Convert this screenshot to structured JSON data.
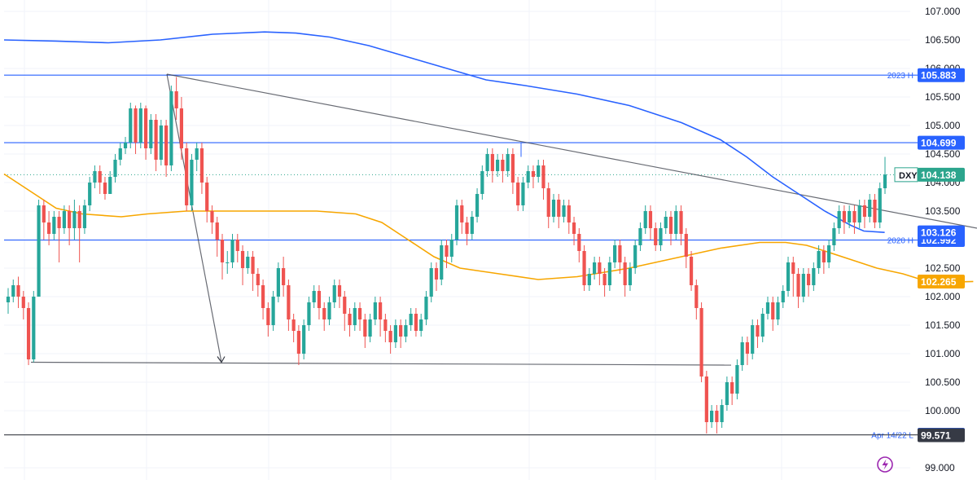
{
  "chart_data": {
    "type": "candlestick",
    "instrument": "DXY",
    "ylim": [
      98.85,
      107.1
    ],
    "y_ticks": [
      "99.000",
      "100.000",
      "100.500",
      "101.000",
      "101.500",
      "102.000",
      "102.500",
      "103.000",
      "103.500",
      "104.000",
      "104.500",
      "105.000",
      "105.500",
      "106.000",
      "106.500",
      "107.000"
    ],
    "last_price": 104.138,
    "levels": [
      {
        "label": "2023 H",
        "value": 105.883,
        "tag": "105.883",
        "color": "#2962ff"
      },
      {
        "label": "",
        "value": 104.699,
        "tag": "104.699",
        "color": "#2962ff"
      },
      {
        "label": "2020 H",
        "value": 102.992,
        "tag": "102.992",
        "color": "#2962ff"
      },
      {
        "label": "Apr 14/22 L",
        "value": 99.578,
        "tag": "99.578",
        "color": "#2962ff"
      }
    ],
    "indicator_tags": [
      {
        "value": 103.126,
        "tag": "103.126",
        "color": "#2962ff"
      },
      {
        "value": 102.265,
        "tag": "102.265",
        "color": "#f7a600"
      },
      {
        "value": 99.571,
        "tag": "99.571",
        "color": "#363a45"
      }
    ],
    "price_tag": {
      "symbol": "DXY",
      "value": "104.138",
      "color": "#2ca58d"
    },
    "colors": {
      "up": "#26a69a",
      "down": "#ef5350",
      "ma_slow": "#2962ff",
      "ma_fast": "#f7a600",
      "trend": "#808080",
      "grid": "#f0f3fa"
    },
    "candles": [
      [
        101.9,
        102.0,
        101.7,
        102.15
      ],
      [
        102.0,
        102.2,
        101.9,
        102.3
      ],
      [
        102.2,
        102.0,
        101.8,
        102.35
      ],
      [
        102.0,
        101.8,
        101.6,
        102.1
      ],
      [
        101.8,
        100.9,
        100.8,
        101.9
      ],
      [
        100.9,
        102.0,
        100.85,
        102.1
      ],
      [
        102.0,
        103.6,
        102.0,
        103.7
      ],
      [
        103.6,
        103.3,
        103.0,
        103.7
      ],
      [
        103.3,
        103.1,
        102.9,
        103.5
      ],
      [
        103.1,
        103.4,
        103.0,
        103.5
      ],
      [
        103.4,
        103.2,
        102.6,
        103.5
      ],
      [
        103.2,
        103.5,
        103.1,
        103.6
      ],
      [
        103.5,
        103.2,
        102.9,
        103.6
      ],
      [
        103.2,
        103.5,
        103.0,
        103.7
      ],
      [
        103.5,
        103.2,
        102.6,
        103.6
      ],
      [
        103.2,
        103.6,
        103.1,
        103.7
      ],
      [
        103.6,
        104.0,
        103.5,
        104.1
      ],
      [
        104.0,
        104.2,
        103.9,
        104.3
      ],
      [
        104.2,
        104.0,
        103.8,
        104.3
      ],
      [
        104.0,
        103.8,
        103.7,
        104.1
      ],
      [
        103.8,
        104.1,
        103.8,
        104.2
      ],
      [
        104.1,
        104.4,
        104.0,
        104.5
      ],
      [
        104.4,
        104.6,
        104.3,
        104.7
      ],
      [
        104.6,
        104.7,
        104.5,
        104.8
      ],
      [
        104.7,
        105.3,
        104.6,
        105.4
      ],
      [
        105.3,
        104.7,
        104.5,
        105.35
      ],
      [
        104.7,
        105.3,
        104.6,
        105.4
      ],
      [
        105.3,
        104.6,
        104.4,
        105.35
      ],
      [
        104.6,
        105.1,
        104.5,
        105.2
      ],
      [
        105.1,
        104.4,
        104.2,
        105.2
      ],
      [
        104.4,
        105.0,
        104.3,
        105.1
      ],
      [
        105.0,
        104.3,
        104.1,
        105.1
      ],
      [
        104.3,
        105.6,
        104.2,
        105.7
      ],
      [
        105.6,
        105.3,
        105.1,
        105.85
      ],
      [
        105.3,
        104.6,
        104.4,
        105.5
      ],
      [
        104.6,
        103.6,
        103.5,
        104.7
      ],
      [
        103.6,
        104.4,
        103.5,
        104.5
      ],
      [
        104.4,
        104.6,
        104.2,
        104.7
      ],
      [
        104.6,
        104.0,
        103.8,
        104.7
      ],
      [
        104.0,
        103.5,
        103.3,
        104.1
      ],
      [
        103.5,
        103.3,
        103.1,
        103.6
      ],
      [
        103.3,
        103.0,
        102.7,
        103.4
      ],
      [
        103.0,
        102.6,
        102.3,
        103.1
      ],
      [
        102.6,
        102.6,
        102.4,
        102.8
      ],
      [
        102.6,
        103.0,
        102.5,
        103.1
      ],
      [
        103.0,
        102.8,
        102.6,
        103.1
      ],
      [
        102.8,
        102.5,
        102.2,
        102.9
      ],
      [
        102.5,
        102.7,
        102.4,
        102.8
      ],
      [
        102.7,
        102.4,
        102.1,
        102.8
      ],
      [
        102.4,
        102.2,
        102.0,
        102.5
      ],
      [
        102.2,
        101.8,
        101.6,
        102.3
      ],
      [
        101.8,
        101.5,
        101.3,
        101.9
      ],
      [
        101.5,
        102.0,
        101.4,
        102.1
      ],
      [
        102.0,
        102.5,
        101.9,
        102.6
      ],
      [
        102.5,
        102.2,
        102.0,
        102.7
      ],
      [
        102.2,
        101.6,
        101.4,
        102.3
      ],
      [
        101.6,
        101.4,
        101.2,
        101.7
      ],
      [
        101.4,
        101.0,
        100.8,
        101.5
      ],
      [
        101.0,
        101.5,
        100.9,
        101.6
      ],
      [
        101.5,
        101.9,
        101.4,
        102.0
      ],
      [
        101.9,
        102.1,
        101.8,
        102.2
      ],
      [
        102.1,
        101.8,
        101.6,
        102.2
      ],
      [
        101.8,
        101.6,
        101.4,
        101.9
      ],
      [
        101.6,
        101.9,
        101.5,
        102.0
      ],
      [
        101.9,
        102.2,
        101.8,
        102.3
      ],
      [
        102.2,
        102.0,
        101.8,
        102.3
      ],
      [
        102.0,
        101.7,
        101.4,
        102.1
      ],
      [
        101.7,
        101.5,
        101.3,
        101.8
      ],
      [
        101.5,
        101.8,
        101.4,
        101.9
      ],
      [
        101.8,
        101.6,
        101.4,
        101.9
      ],
      [
        101.6,
        101.3,
        101.1,
        101.7
      ],
      [
        101.3,
        101.6,
        101.2,
        101.7
      ],
      [
        101.6,
        101.9,
        101.5,
        102.0
      ],
      [
        101.9,
        101.6,
        101.3,
        102.0
      ],
      [
        101.6,
        101.4,
        101.2,
        101.7
      ],
      [
        101.4,
        101.2,
        101.0,
        101.5
      ],
      [
        101.2,
        101.5,
        101.1,
        101.6
      ],
      [
        101.5,
        101.3,
        101.1,
        101.6
      ],
      [
        101.3,
        101.5,
        101.2,
        101.6
      ],
      [
        101.5,
        101.7,
        101.4,
        101.8
      ],
      [
        101.7,
        101.4,
        101.3,
        101.8
      ],
      [
        101.4,
        101.6,
        101.3,
        101.7
      ],
      [
        101.6,
        102.0,
        101.5,
        102.1
      ],
      [
        102.0,
        102.5,
        101.9,
        102.6
      ],
      [
        102.5,
        102.3,
        102.1,
        102.6
      ],
      [
        102.3,
        102.9,
        102.2,
        103.0
      ],
      [
        102.9,
        102.7,
        102.5,
        103.0
      ],
      [
        102.7,
        103.0,
        102.6,
        103.1
      ],
      [
        103.0,
        103.6,
        102.9,
        103.7
      ],
      [
        103.6,
        103.3,
        103.1,
        103.7
      ],
      [
        103.3,
        103.1,
        102.9,
        103.4
      ],
      [
        103.1,
        103.4,
        103.0,
        103.5
      ],
      [
        103.4,
        103.8,
        103.3,
        103.9
      ],
      [
        103.8,
        104.2,
        103.7,
        104.3
      ],
      [
        104.2,
        104.5,
        104.1,
        104.6
      ],
      [
        104.5,
        104.2,
        104.0,
        104.6
      ],
      [
        104.2,
        104.4,
        104.1,
        104.5
      ],
      [
        104.4,
        104.2,
        104.0,
        104.5
      ],
      [
        104.2,
        104.5,
        104.1,
        104.6
      ],
      [
        104.5,
        104.0,
        103.8,
        104.6
      ],
      [
        104.0,
        103.6,
        103.5,
        104.1
      ],
      [
        103.6,
        104.0,
        103.5,
        104.1
      ],
      [
        104.0,
        104.2,
        103.9,
        104.3
      ],
      [
        104.2,
        104.1,
        103.9,
        104.3
      ],
      [
        104.1,
        104.3,
        104.0,
        104.4
      ],
      [
        104.3,
        103.9,
        103.7,
        104.4
      ],
      [
        103.9,
        103.4,
        103.2,
        104.0
      ],
      [
        103.4,
        103.7,
        103.3,
        103.8
      ],
      [
        103.7,
        103.4,
        103.2,
        103.8
      ],
      [
        103.4,
        103.6,
        103.3,
        103.7
      ],
      [
        103.6,
        103.3,
        103.1,
        103.7
      ],
      [
        103.3,
        103.1,
        102.9,
        103.4
      ],
      [
        103.1,
        102.8,
        102.6,
        103.2
      ],
      [
        102.8,
        102.2,
        102.1,
        102.9
      ],
      [
        102.2,
        102.4,
        102.1,
        102.5
      ],
      [
        102.4,
        102.6,
        102.3,
        102.7
      ],
      [
        102.6,
        102.4,
        102.2,
        102.7
      ],
      [
        102.4,
        102.2,
        102.0,
        102.5
      ],
      [
        102.2,
        102.6,
        102.1,
        102.7
      ],
      [
        102.6,
        102.9,
        102.5,
        103.0
      ],
      [
        102.9,
        102.6,
        102.4,
        103.0
      ],
      [
        102.6,
        102.2,
        102.0,
        102.7
      ],
      [
        102.2,
        102.5,
        102.1,
        102.6
      ],
      [
        102.5,
        102.9,
        102.4,
        103.0
      ],
      [
        102.9,
        103.2,
        102.8,
        103.3
      ],
      [
        103.2,
        103.5,
        103.1,
        103.6
      ],
      [
        103.5,
        103.2,
        103.0,
        103.6
      ],
      [
        103.2,
        102.9,
        102.8,
        103.3
      ],
      [
        102.9,
        103.2,
        102.8,
        103.3
      ],
      [
        103.2,
        103.4,
        103.1,
        103.5
      ],
      [
        103.4,
        103.1,
        102.9,
        103.5
      ],
      [
        103.1,
        103.5,
        103.0,
        103.6
      ],
      [
        103.5,
        103.1,
        102.9,
        103.6
      ],
      [
        103.1,
        102.7,
        102.5,
        103.2
      ],
      [
        102.7,
        102.2,
        102.1,
        102.8
      ],
      [
        102.2,
        101.8,
        101.6,
        102.3
      ],
      [
        101.8,
        100.6,
        100.5,
        101.9
      ],
      [
        100.6,
        99.8,
        99.6,
        100.7
      ],
      [
        99.8,
        100.0,
        99.7,
        100.1
      ],
      [
        100.0,
        99.8,
        99.6,
        100.1
      ],
      [
        99.8,
        100.1,
        99.7,
        100.2
      ],
      [
        100.1,
        100.5,
        100.0,
        100.6
      ],
      [
        100.5,
        100.3,
        100.1,
        100.6
      ],
      [
        100.3,
        100.8,
        100.2,
        100.9
      ],
      [
        100.8,
        101.2,
        100.7,
        101.3
      ],
      [
        101.2,
        101.0,
        100.8,
        101.3
      ],
      [
        101.0,
        101.5,
        100.9,
        101.6
      ],
      [
        101.5,
        101.3,
        101.1,
        101.6
      ],
      [
        101.3,
        101.7,
        101.2,
        101.8
      ],
      [
        101.7,
        101.9,
        101.6,
        102.0
      ],
      [
        101.9,
        101.6,
        101.4,
        102.0
      ],
      [
        101.6,
        101.9,
        101.5,
        102.0
      ],
      [
        101.9,
        102.1,
        101.8,
        102.2
      ],
      [
        102.1,
        102.6,
        102.0,
        102.7
      ],
      [
        102.6,
        102.4,
        102.0,
        102.7
      ],
      [
        102.4,
        102.0,
        101.8,
        102.5
      ],
      [
        102.0,
        102.4,
        101.9,
        102.5
      ],
      [
        102.4,
        102.2,
        102.0,
        102.5
      ],
      [
        102.2,
        102.5,
        102.1,
        102.6
      ],
      [
        102.5,
        102.8,
        102.4,
        102.9
      ],
      [
        102.8,
        102.6,
        102.4,
        102.9
      ],
      [
        102.6,
        102.9,
        102.5,
        103.0
      ],
      [
        102.9,
        103.2,
        102.8,
        103.3
      ],
      [
        103.2,
        103.5,
        103.1,
        103.6
      ],
      [
        103.5,
        103.3,
        103.1,
        103.6
      ],
      [
        103.3,
        103.5,
        103.2,
        103.6
      ],
      [
        103.5,
        103.3,
        103.1,
        103.6
      ],
      [
        103.3,
        103.6,
        103.2,
        103.7
      ],
      [
        103.6,
        103.4,
        103.2,
        103.7
      ],
      [
        103.4,
        103.7,
        103.3,
        103.8
      ],
      [
        103.7,
        103.3,
        103.2,
        103.8
      ],
      [
        103.3,
        103.9,
        103.2,
        104.0
      ],
      [
        103.9,
        104.14,
        103.8,
        104.45
      ]
    ],
    "ma_slow": [
      [
        0,
        106.5
      ],
      [
        20,
        106.48
      ],
      [
        40,
        106.45
      ],
      [
        60,
        106.5
      ],
      [
        80,
        106.6
      ],
      [
        100,
        106.64
      ],
      [
        112,
        106.62
      ],
      [
        125,
        106.55
      ],
      [
        140,
        106.4
      ],
      [
        155,
        106.2
      ],
      [
        170,
        106.0
      ],
      [
        185,
        105.8
      ],
      [
        200,
        105.7
      ],
      [
        220,
        105.55
      ],
      [
        240,
        105.35
      ],
      [
        260,
        105.05
      ],
      [
        275,
        104.75
      ],
      [
        285,
        104.45
      ],
      [
        295,
        104.1
      ],
      [
        305,
        103.8
      ],
      [
        315,
        103.5
      ],
      [
        325,
        103.25
      ],
      [
        330,
        103.15
      ],
      [
        338,
        103.126
      ]
    ],
    "ma_fast": [
      [
        0,
        104.15
      ],
      [
        10,
        103.85
      ],
      [
        20,
        103.55
      ],
      [
        30,
        103.45
      ],
      [
        45,
        103.4
      ],
      [
        55,
        103.45
      ],
      [
        70,
        103.5
      ],
      [
        80,
        103.5
      ],
      [
        100,
        103.5
      ],
      [
        120,
        103.5
      ],
      [
        135,
        103.45
      ],
      [
        145,
        103.3
      ],
      [
        155,
        103.0
      ],
      [
        165,
        102.7
      ],
      [
        175,
        102.5
      ],
      [
        190,
        102.4
      ],
      [
        205,
        102.3
      ],
      [
        220,
        102.35
      ],
      [
        240,
        102.5
      ],
      [
        260,
        102.7
      ],
      [
        275,
        102.85
      ],
      [
        290,
        102.95
      ],
      [
        300,
        102.95
      ],
      [
        308,
        102.9
      ],
      [
        315,
        102.8
      ],
      [
        325,
        102.65
      ],
      [
        335,
        102.5
      ],
      [
        345,
        102.4
      ],
      [
        352,
        102.3
      ],
      [
        360,
        102.25
      ],
      [
        372,
        102.265
      ]
    ],
    "trend_lines": [
      {
        "from": [
          205,
          105.9
        ],
        "to": [
          1200,
          103.2
        ]
      },
      {
        "from": [
          205,
          105.9
        ],
        "to": [
          272,
          100.85
        ]
      },
      {
        "from": [
          38,
          100.85
        ],
        "to": [
          898,
          100.8
        ]
      },
      {
        "from": [
          5,
          99.578
        ],
        "to": [
          1130,
          99.578
        ]
      }
    ]
  }
}
